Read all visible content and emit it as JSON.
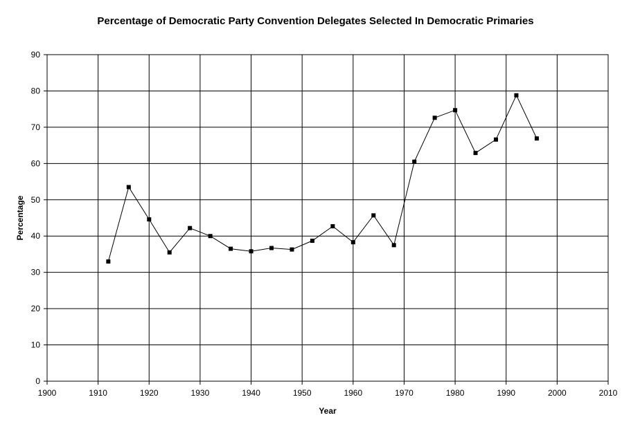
{
  "chart_data": {
    "type": "line",
    "title": "Percentage of Democratic Party Convention Delegates Selected In Democratic Primaries",
    "xlabel": "Year",
    "ylabel": "Percentage",
    "xlim": [
      1900,
      2010
    ],
    "ylim": [
      0,
      90
    ],
    "xticks": [
      1900,
      1910,
      1920,
      1930,
      1940,
      1950,
      1960,
      1970,
      1980,
      1990,
      2000,
      2010
    ],
    "yticks": [
      0,
      10,
      20,
      30,
      40,
      50,
      60,
      70,
      80,
      90
    ],
    "grid": true,
    "legend": "none",
    "series": [
      {
        "x": [
          1912,
          1916,
          1920,
          1924,
          1928,
          1932,
          1936,
          1940,
          1944,
          1948,
          1952,
          1956,
          1960,
          1964,
          1968,
          1972,
          1976,
          1980,
          1984,
          1988,
          1992,
          1996
        ],
        "y": [
          33.0,
          53.5,
          44.6,
          35.5,
          42.2,
          40.0,
          36.5,
          35.8,
          36.7,
          36.3,
          38.7,
          42.7,
          38.3,
          45.7,
          37.5,
          60.5,
          72.6,
          74.7,
          62.9,
          66.6,
          78.8,
          66.9
        ],
        "color": "#000000",
        "marker": "square"
      }
    ]
  }
}
